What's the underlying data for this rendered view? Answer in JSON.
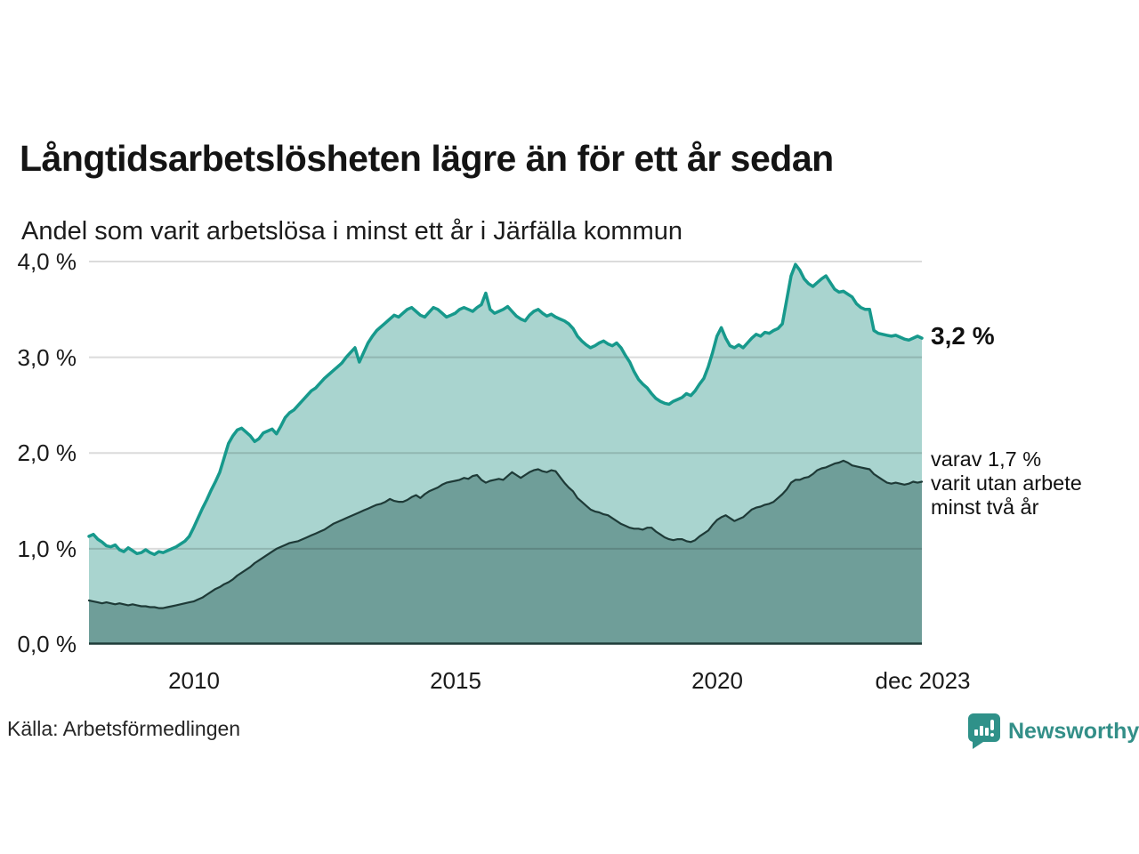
{
  "header": {
    "title": "Långtidsarbetslösheten lägre än för ett år sedan",
    "subtitle": "Andel som varit arbetslösa i minst ett år i Järfälla kommun"
  },
  "chart_data": {
    "type": "area",
    "unit": "%",
    "grid": true,
    "x_start": "2008-01",
    "x_end": "2023-12",
    "points_per_month": 1,
    "ylim": [
      0,
      4
    ],
    "y_tick_labels": [
      "4,0 %",
      "3,0 %",
      "2,0 %",
      "1,0 %",
      "0,0 %"
    ],
    "x_tick_labels": [
      "2010",
      "2015",
      "2020",
      "dec 2023"
    ],
    "x_tick_indices": [
      24,
      84,
      144,
      191
    ],
    "series": [
      {
        "name": "Arbetslösa minst ett år",
        "end_label": "3,2 %",
        "line_color": "#17998c",
        "fill_color": "#a9d4cf",
        "values": [
          1.13,
          1.15,
          1.1,
          1.07,
          1.03,
          1.02,
          1.04,
          0.99,
          0.97,
          1.01,
          0.98,
          0.95,
          0.96,
          0.99,
          0.96,
          0.94,
          0.97,
          0.96,
          0.98,
          1.0,
          1.02,
          1.05,
          1.08,
          1.13,
          1.22,
          1.32,
          1.42,
          1.51,
          1.61,
          1.7,
          1.8,
          1.95,
          2.1,
          2.18,
          2.24,
          2.26,
          2.22,
          2.18,
          2.12,
          2.15,
          2.21,
          2.23,
          2.25,
          2.2,
          2.28,
          2.37,
          2.42,
          2.45,
          2.5,
          2.55,
          2.6,
          2.65,
          2.68,
          2.73,
          2.78,
          2.82,
          2.86,
          2.9,
          2.94,
          3.0,
          3.05,
          3.1,
          2.95,
          3.05,
          3.15,
          3.22,
          3.28,
          3.32,
          3.36,
          3.4,
          3.44,
          3.42,
          3.46,
          3.5,
          3.52,
          3.48,
          3.44,
          3.42,
          3.47,
          3.52,
          3.5,
          3.46,
          3.42,
          3.44,
          3.46,
          3.5,
          3.52,
          3.5,
          3.48,
          3.52,
          3.55,
          3.67,
          3.5,
          3.46,
          3.48,
          3.5,
          3.53,
          3.48,
          3.43,
          3.4,
          3.38,
          3.44,
          3.48,
          3.5,
          3.46,
          3.43,
          3.45,
          3.42,
          3.4,
          3.38,
          3.35,
          3.3,
          3.22,
          3.17,
          3.13,
          3.1,
          3.12,
          3.15,
          3.17,
          3.14,
          3.12,
          3.15,
          3.1,
          3.02,
          2.95,
          2.85,
          2.77,
          2.72,
          2.68,
          2.62,
          2.57,
          2.54,
          2.52,
          2.51,
          2.54,
          2.56,
          2.58,
          2.62,
          2.6,
          2.65,
          2.72,
          2.78,
          2.9,
          3.05,
          3.22,
          3.31,
          3.2,
          3.12,
          3.1,
          3.13,
          3.1,
          3.15,
          3.2,
          3.24,
          3.22,
          3.26,
          3.25,
          3.28,
          3.3,
          3.35,
          3.6,
          3.85,
          3.97,
          3.91,
          3.82,
          3.77,
          3.74,
          3.78,
          3.82,
          3.85,
          3.78,
          3.71,
          3.68,
          3.69,
          3.66,
          3.63,
          3.56,
          3.52,
          3.5,
          3.5,
          3.28,
          3.25,
          3.24,
          3.23,
          3.22,
          3.23,
          3.21,
          3.19,
          3.18,
          3.2,
          3.22,
          3.2
        ]
      },
      {
        "name": "Arbetslösa minst två år",
        "annotation_lines": [
          "varav 1,7 %",
          "varit utan arbete",
          "minst två år"
        ],
        "line_color": "#1e3a37",
        "fill_color": "#6f9e99",
        "values": [
          0.46,
          0.45,
          0.44,
          0.43,
          0.44,
          0.43,
          0.42,
          0.43,
          0.42,
          0.41,
          0.42,
          0.41,
          0.4,
          0.4,
          0.39,
          0.39,
          0.38,
          0.38,
          0.39,
          0.4,
          0.41,
          0.42,
          0.43,
          0.44,
          0.45,
          0.47,
          0.49,
          0.52,
          0.55,
          0.58,
          0.6,
          0.63,
          0.65,
          0.68,
          0.72,
          0.75,
          0.78,
          0.81,
          0.85,
          0.88,
          0.91,
          0.94,
          0.97,
          1.0,
          1.02,
          1.04,
          1.06,
          1.07,
          1.08,
          1.1,
          1.12,
          1.14,
          1.16,
          1.18,
          1.2,
          1.23,
          1.26,
          1.28,
          1.3,
          1.32,
          1.34,
          1.36,
          1.38,
          1.4,
          1.42,
          1.44,
          1.46,
          1.47,
          1.49,
          1.52,
          1.5,
          1.49,
          1.49,
          1.51,
          1.54,
          1.56,
          1.53,
          1.57,
          1.6,
          1.62,
          1.64,
          1.67,
          1.69,
          1.7,
          1.71,
          1.72,
          1.74,
          1.73,
          1.76,
          1.77,
          1.72,
          1.69,
          1.71,
          1.72,
          1.73,
          1.72,
          1.76,
          1.8,
          1.77,
          1.74,
          1.77,
          1.8,
          1.82,
          1.83,
          1.81,
          1.8,
          1.82,
          1.81,
          1.75,
          1.69,
          1.64,
          1.6,
          1.53,
          1.49,
          1.45,
          1.41,
          1.39,
          1.38,
          1.36,
          1.35,
          1.32,
          1.29,
          1.26,
          1.24,
          1.22,
          1.21,
          1.21,
          1.2,
          1.22,
          1.22,
          1.18,
          1.15,
          1.12,
          1.1,
          1.09,
          1.1,
          1.1,
          1.08,
          1.07,
          1.09,
          1.13,
          1.16,
          1.19,
          1.25,
          1.3,
          1.33,
          1.35,
          1.32,
          1.29,
          1.31,
          1.33,
          1.37,
          1.41,
          1.43,
          1.44,
          1.46,
          1.47,
          1.49,
          1.53,
          1.57,
          1.62,
          1.69,
          1.72,
          1.72,
          1.74,
          1.75,
          1.78,
          1.82,
          1.84,
          1.85,
          1.87,
          1.89,
          1.9,
          1.92,
          1.9,
          1.87,
          1.86,
          1.85,
          1.84,
          1.83,
          1.78,
          1.75,
          1.72,
          1.69,
          1.68,
          1.69,
          1.68,
          1.67,
          1.68,
          1.7,
          1.69,
          1.7
        ]
      }
    ]
  },
  "footer": {
    "source": "Källa: Arbetsförmedlingen",
    "brand": "Newsworthy",
    "brand_color": "#2f9189"
  }
}
